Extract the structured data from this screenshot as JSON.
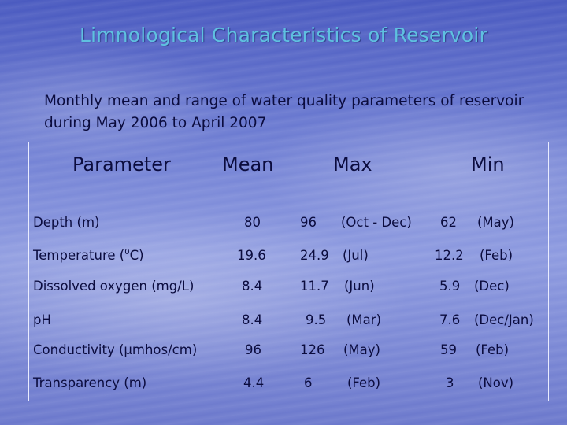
{
  "slide": {
    "title": "Limnological Characteristics of Reservoir",
    "subtitle": "Monthly mean and range of water quality parameters of reservoir during May 2006 to April 2007"
  },
  "table": {
    "headers": {
      "parameter": "Parameter",
      "mean": "Mean",
      "max": "Max",
      "min": "Min"
    },
    "rows": [
      {
        "parameter": "Depth (m)",
        "mean": "80",
        "max_value": "96",
        "max_period": "(Oct - Dec)",
        "min_value": "62",
        "min_period": "(May)"
      },
      {
        "parameter_prefix": "Temperature (",
        "parameter_sup": "0",
        "parameter_suffix": "C)",
        "mean": "19.6",
        "max_value": "24.9",
        "max_period": "(Jul)",
        "min_value": "12.2",
        "min_period": "(Feb)"
      },
      {
        "parameter": "Dissolved oxygen (mg/L)",
        "mean": "8.4",
        "max_value": "11.7",
        "max_period": "(Jun)",
        "min_value": "5.9",
        "min_period": "(Dec)"
      },
      {
        "parameter": "pH",
        "mean": "8.4",
        "max_value": "9.5",
        "max_period": "(Mar)",
        "min_value": "7.6",
        "min_period": "(Dec/Jan)"
      },
      {
        "parameter": "Conductivity (µmhos/cm)",
        "mean": "96",
        "max_value": "126",
        "max_period": "(May)",
        "min_value": "59",
        "min_period": "(Feb)"
      },
      {
        "parameter": "Transparency (m)",
        "mean": "4.4",
        "max_value": "6",
        "max_period": "(Feb)",
        "min_value": "3",
        "min_period": "(Nov)"
      }
    ]
  },
  "colors": {
    "title": "#5fc0e0",
    "text": "#0b0c3e",
    "table_border": "#e9ecff"
  }
}
